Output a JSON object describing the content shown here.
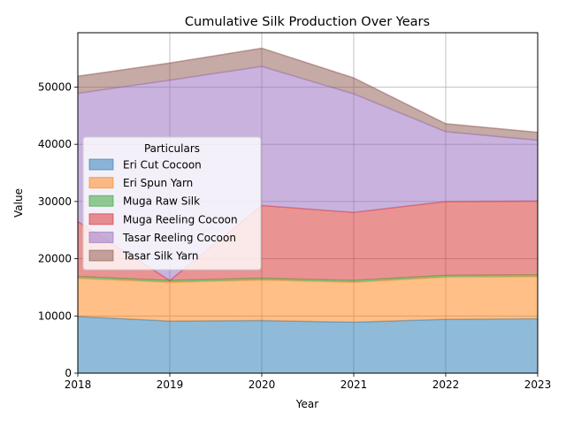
{
  "chart_data": {
    "type": "area",
    "stacked": true,
    "title": "Cumulative Silk Production Over Years",
    "xlabel": "Year",
    "ylabel": "Value",
    "x": [
      2018,
      2019,
      2020,
      2021,
      2022,
      2023
    ],
    "xlim": [
      2018,
      2023
    ],
    "ylim": [
      0,
      59500
    ],
    "yticks": [
      0,
      10000,
      20000,
      30000,
      40000,
      50000
    ],
    "grid": true,
    "legend": {
      "title": "Particulars",
      "placement": "center-left"
    },
    "series": [
      {
        "name": "Eri Cut Cocoon",
        "color": "#1f77b4",
        "values": [
          9900,
          9100,
          9200,
          8900,
          9400,
          9500
        ]
      },
      {
        "name": "Eri Spun Yarn",
        "color": "#ff7f0e",
        "values": [
          6700,
          6800,
          7100,
          7000,
          7400,
          7400
        ]
      },
      {
        "name": "Muga Raw Silk",
        "color": "#2ca02c",
        "values": [
          300,
          300,
          300,
          300,
          300,
          300
        ]
      },
      {
        "name": "Muga Reeling Cocoon",
        "color": "#d62728",
        "values": [
          9600,
          0,
          12700,
          11900,
          12900,
          12900
        ]
      },
      {
        "name": "Tasar Reeling Cocoon",
        "color": "#9467bd",
        "values": [
          22400,
          35000,
          24300,
          20700,
          12200,
          10600
        ]
      },
      {
        "name": "Tasar Silk Yarn",
        "color": "#8c564b",
        "values": [
          3000,
          3000,
          3200,
          2800,
          1400,
          1400
        ]
      }
    ]
  }
}
